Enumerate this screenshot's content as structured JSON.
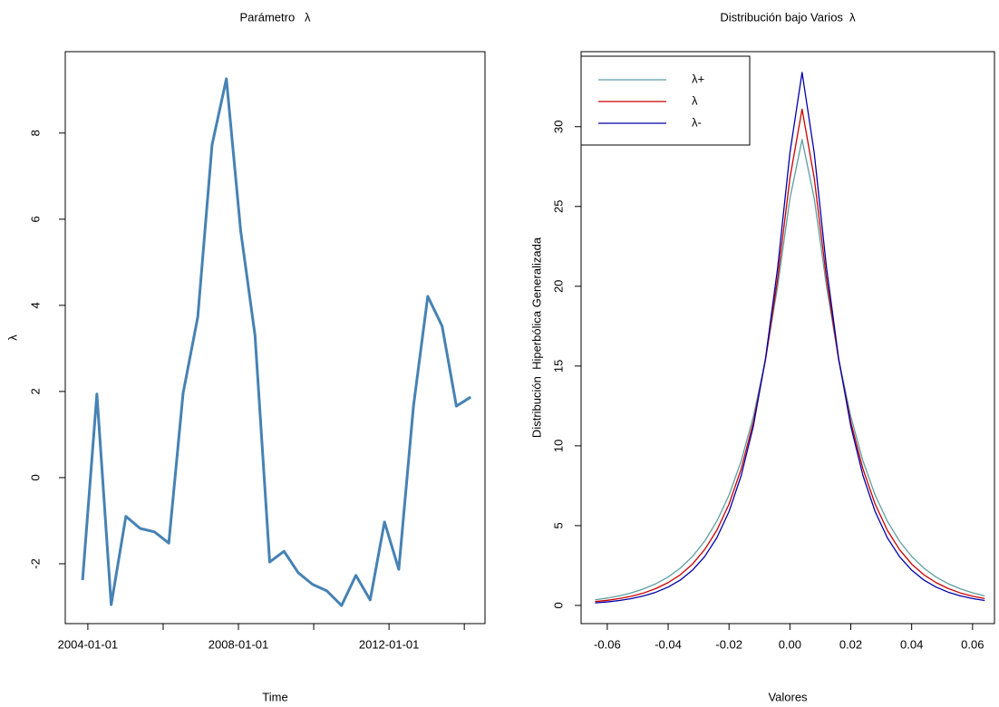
{
  "chart_data": [
    {
      "type": "line",
      "title": "Parámetro   λ",
      "xlabel": "Time",
      "ylabel": "λ",
      "color": "#4682b4",
      "x": [
        2003.86,
        2004.24,
        2004.62,
        2005.01,
        2005.39,
        2005.77,
        2006.15,
        2006.53,
        2006.92,
        2007.3,
        2007.68,
        2008.06,
        2008.44,
        2008.83,
        2009.21,
        2009.59,
        2009.97,
        2010.35,
        2010.74,
        2011.12,
        2011.5,
        2011.88,
        2012.26,
        2012.65,
        2013.03,
        2013.41,
        2013.79,
        2014.17
      ],
      "values": [
        -2.38,
        1.94,
        -2.95,
        -0.9,
        -1.18,
        -1.26,
        -1.52,
        1.96,
        3.73,
        7.73,
        9.26,
        5.73,
        3.31,
        -1.96,
        -1.71,
        -2.21,
        -2.48,
        -2.63,
        -2.97,
        -2.27,
        -2.84,
        -1.03,
        -2.13,
        1.66,
        4.21,
        3.52,
        1.66,
        1.87
      ],
      "xlim": [
        2003.4,
        2014.55
      ],
      "xticks": [
        {
          "value": 2004,
          "label": "2004-01-01"
        },
        {
          "value": 2006,
          "label": null
        },
        {
          "value": 2008,
          "label": "2008-01-01"
        },
        {
          "value": 2010,
          "label": null
        },
        {
          "value": 2012,
          "label": "2012-01-01"
        },
        {
          "value": 2014,
          "label": null
        }
      ],
      "ylim": [
        -3.39,
        9.89
      ],
      "yticks": [
        -2,
        0,
        2,
        4,
        6,
        8
      ]
    },
    {
      "type": "line",
      "title": "Distribución bajo Varios  λ",
      "xlabel": "Valores",
      "ylabel": "Distribución  Hiperbólica Generalizada",
      "legend": "top-left",
      "x": [
        -0.064,
        -0.06,
        -0.056,
        -0.052,
        -0.048,
        -0.044,
        -0.04,
        -0.036,
        -0.032,
        -0.028,
        -0.024,
        -0.02,
        -0.016,
        -0.012,
        -0.008,
        -0.004,
        0,
        0.004,
        0.008,
        0.012,
        0.016,
        0.02,
        0.024,
        0.028,
        0.032,
        0.036,
        0.04,
        0.044,
        0.048,
        0.052,
        0.056,
        0.06,
        0.064
      ],
      "series": [
        {
          "name": "λ+",
          "color": "#5f9ea0",
          "values": [
            0.35,
            0.46,
            0.6,
            0.79,
            1.04,
            1.36,
            1.78,
            2.34,
            3.07,
            4.03,
            5.28,
            6.91,
            9.05,
            11.84,
            15.44,
            20.03,
            25.49,
            29.2,
            25.49,
            20.03,
            15.44,
            11.84,
            9.05,
            6.91,
            5.28,
            4.03,
            3.07,
            2.34,
            1.78,
            1.36,
            1.04,
            0.79,
            0.6
          ]
        },
        {
          "name": "λ",
          "color": "#cc0000",
          "values": [
            0.24,
            0.32,
            0.43,
            0.58,
            0.78,
            1.06,
            1.43,
            1.92,
            2.59,
            3.5,
            4.71,
            6.35,
            8.55,
            11.49,
            15.4,
            20.52,
            26.77,
            31.1,
            26.77,
            20.52,
            15.4,
            11.49,
            8.55,
            6.35,
            4.71,
            3.5,
            2.59,
            1.92,
            1.43,
            1.06,
            0.78,
            0.58,
            0.43
          ]
        },
        {
          "name": "λ-",
          "color": "#0000aa",
          "values": [
            0.16,
            0.22,
            0.31,
            0.43,
            0.6,
            0.83,
            1.15,
            1.59,
            2.21,
            3.06,
            4.24,
            5.88,
            8.14,
            11.24,
            15.49,
            21.2,
            28.35,
            33.4,
            28.35,
            21.2,
            15.49,
            11.24,
            8.14,
            5.88,
            4.24,
            3.06,
            2.21,
            1.59,
            1.15,
            0.83,
            0.6,
            0.43,
            0.31
          ]
        }
      ],
      "xlim": [
        -0.0686,
        0.0672
      ],
      "xticks": [
        -0.06,
        -0.04,
        -0.02,
        {
          "value": 0,
          "label": "0.00"
        },
        0.02,
        0.04,
        0.06
      ],
      "ylim": [
        -1.14,
        34.7
      ],
      "yticks": [
        0,
        5,
        10,
        15,
        20,
        25,
        30
      ]
    }
  ]
}
